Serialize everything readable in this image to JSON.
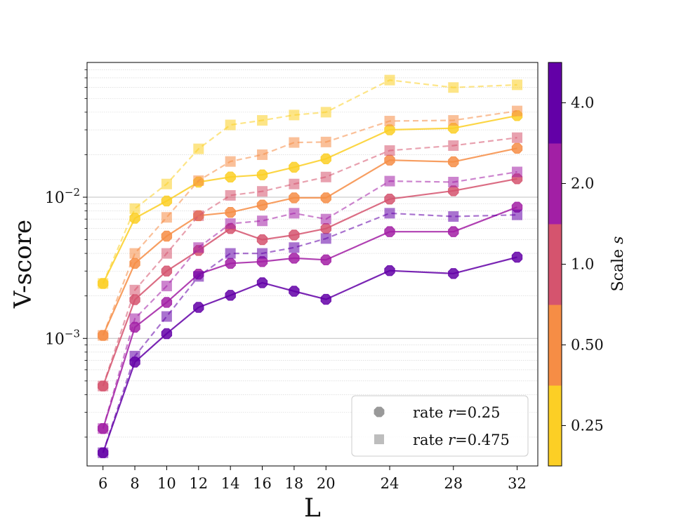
{
  "chart_data": {
    "type": "line",
    "title": "",
    "xlabel": "L",
    "ylabel": "V-score",
    "yscale": "log",
    "ylim": [
      0.000125,
      0.09
    ],
    "xlim": [
      5.0,
      33.3
    ],
    "x": [
      6,
      8,
      10,
      12,
      14,
      16,
      18,
      20,
      24,
      28,
      32
    ],
    "x_tick_labels": [
      "6",
      "8",
      "10",
      "12",
      "14",
      "16",
      "18",
      "20",
      "24",
      "28",
      "32"
    ],
    "y_ticks": [
      {
        "value": 0.001,
        "base": "10",
        "exp": "−3"
      },
      {
        "value": 0.01,
        "base": "10",
        "exp": "−2"
      }
    ],
    "grid": "horizontal major and minor",
    "colorbar": {
      "label_prefix": "Scale ",
      "label_symbol": "s",
      "ticks": [
        "0.25",
        "0.50",
        "1.0",
        "2.0",
        "4.0"
      ],
      "colors": [
        "#fccf25",
        "#f68d45",
        "#d5546e",
        "#a21fa5",
        "#6300a7"
      ]
    },
    "legend": {
      "position": "lower-right",
      "entries": [
        {
          "prefix": "rate ",
          "symbol": "r",
          "value": "=0.25",
          "marker": "circle"
        },
        {
          "prefix": "rate ",
          "symbol": "r",
          "value": "=0.475",
          "marker": "square"
        }
      ]
    },
    "series": [
      {
        "name": "s=0.25, r=0.25",
        "scale": "0.25",
        "rate": "0.25",
        "color": "#fccf25",
        "style": "solid",
        "marker": "circle",
        "values": [
          0.00245,
          0.0071,
          0.0094,
          0.0128,
          0.0139,
          0.0144,
          0.0163,
          0.0187,
          0.03,
          0.0308,
          0.0378
        ]
      },
      {
        "name": "s=0.25, r=0.475",
        "scale": "0.25",
        "rate": "0.475",
        "color": "#fccf25",
        "style": "dashed",
        "marker": "square",
        "values": [
          0.00245,
          0.0083,
          0.0124,
          0.022,
          0.0325,
          0.035,
          0.0382,
          0.04,
          0.0675,
          0.0598,
          0.0625
        ]
      },
      {
        "name": "s=0.50, r=0.25",
        "scale": "0.50",
        "rate": "0.25",
        "color": "#f68d45",
        "style": "solid",
        "marker": "circle",
        "values": [
          0.00105,
          0.0034,
          0.0053,
          0.0074,
          0.0078,
          0.0088,
          0.0099,
          0.0099,
          0.0183,
          0.0178,
          0.0222
        ]
      },
      {
        "name": "s=0.50, r=0.475",
        "scale": "0.50",
        "rate": "0.475",
        "color": "#f68d45",
        "style": "dashed",
        "marker": "square",
        "values": [
          0.00105,
          0.004,
          0.0072,
          0.0131,
          0.0179,
          0.02,
          0.0244,
          0.0246,
          0.0346,
          0.035,
          0.0408
        ]
      },
      {
        "name": "s=1.0, r=0.25",
        "scale": "1.0",
        "rate": "0.25",
        "color": "#d5546e",
        "style": "solid",
        "marker": "circle",
        "values": [
          0.00046,
          0.00188,
          0.003,
          0.0042,
          0.006,
          0.005,
          0.0054,
          0.006,
          0.0097,
          0.0111,
          0.0135
        ]
      },
      {
        "name": "s=1.0, r=0.475",
        "scale": "1.0",
        "rate": "0.475",
        "color": "#d5546e",
        "style": "dashed",
        "marker": "square",
        "values": [
          0.00046,
          0.0022,
          0.004,
          0.0074,
          0.0103,
          0.011,
          0.0124,
          0.0139,
          0.0214,
          0.0232,
          0.0264
        ]
      },
      {
        "name": "s=2.0, r=0.25",
        "scale": "2.0",
        "rate": "0.25",
        "color": "#a21fa5",
        "style": "solid",
        "marker": "circle",
        "values": [
          0.00023,
          0.0012,
          0.0018,
          0.00285,
          0.0034,
          0.0035,
          0.0037,
          0.0036,
          0.0057,
          0.0057,
          0.0085
        ]
      },
      {
        "name": "s=2.0, r=0.475",
        "scale": "2.0",
        "rate": "0.475",
        "color": "#a21fa5",
        "style": "dashed",
        "marker": "square",
        "values": [
          0.00023,
          0.00138,
          0.00235,
          0.0044,
          0.0065,
          0.0068,
          0.0077,
          0.007,
          0.013,
          0.0128,
          0.0151
        ]
      },
      {
        "name": "s=4.0, r=0.25",
        "scale": "4.0",
        "rate": "0.25",
        "color": "#6300a7",
        "style": "solid",
        "marker": "circle",
        "values": [
          0.000155,
          0.00068,
          0.00108,
          0.00166,
          0.00202,
          0.00248,
          0.00216,
          0.00189,
          0.00302,
          0.00288,
          0.00376
        ]
      },
      {
        "name": "s=4.0, r=0.475",
        "scale": "4.0",
        "rate": "0.475",
        "color": "#6300a7",
        "style": "dashed",
        "marker": "square",
        "values": [
          0.000155,
          0.00075,
          0.00143,
          0.00275,
          0.004,
          0.004,
          0.0044,
          0.0051,
          0.0077,
          0.0073,
          0.0075
        ]
      }
    ]
  }
}
